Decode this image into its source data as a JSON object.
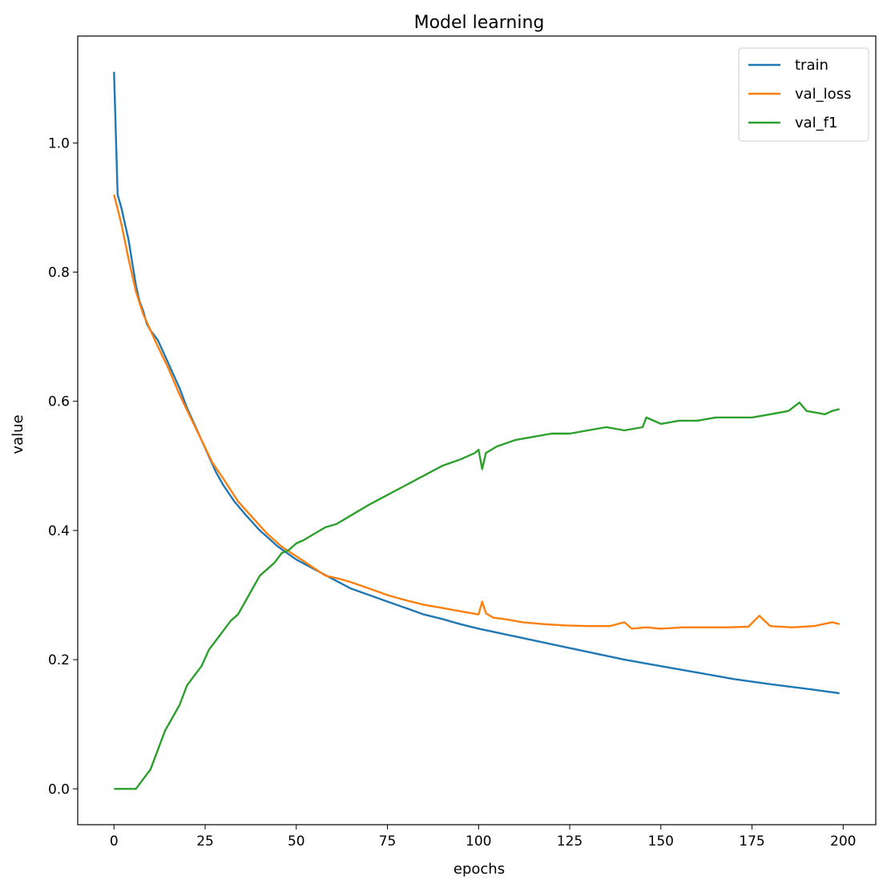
{
  "chart_data": {
    "type": "line",
    "title": "Model learning",
    "xlabel": "epochs",
    "ylabel": "value",
    "xlim": [
      -9.95,
      208.95
    ],
    "ylim": [
      -0.0555,
      1.1655
    ],
    "xticks": [
      0,
      25,
      50,
      75,
      100,
      125,
      150,
      175,
      200
    ],
    "yticks": [
      0.0,
      0.2,
      0.4,
      0.6,
      0.8,
      1.0
    ],
    "xtick_labels": [
      "0",
      "25",
      "50",
      "75",
      "100",
      "125",
      "150",
      "175",
      "200"
    ],
    "ytick_labels": [
      "0.0",
      "0.2",
      "0.4",
      "0.6",
      "0.8",
      "1.0"
    ],
    "grid": false,
    "legend_position": "top-right",
    "series": [
      {
        "name": "train",
        "color": "#1f77b4",
        "x": [
          0,
          1,
          2,
          3,
          4,
          5,
          6,
          7,
          8,
          9,
          10,
          12,
          14,
          16,
          18,
          20,
          22,
          24,
          26,
          28,
          30,
          33,
          36,
          40,
          45,
          50,
          55,
          60,
          65,
          70,
          75,
          80,
          85,
          90,
          95,
          100,
          110,
          120,
          130,
          140,
          150,
          160,
          170,
          180,
          190,
          199
        ],
        "values": [
          1.11,
          0.92,
          0.9,
          0.875,
          0.85,
          0.815,
          0.78,
          0.755,
          0.74,
          0.72,
          0.71,
          0.695,
          0.67,
          0.645,
          0.62,
          0.59,
          0.565,
          0.54,
          0.515,
          0.49,
          0.47,
          0.445,
          0.425,
          0.4,
          0.375,
          0.355,
          0.34,
          0.325,
          0.31,
          0.3,
          0.29,
          0.28,
          0.27,
          0.263,
          0.255,
          0.248,
          0.236,
          0.224,
          0.212,
          0.2,
          0.19,
          0.18,
          0.17,
          0.162,
          0.155,
          0.148
        ]
      },
      {
        "name": "val_loss",
        "color": "#ff7f0e",
        "x": [
          0,
          2,
          4,
          6,
          8,
          10,
          12,
          15,
          18,
          21,
          24,
          27,
          30,
          34,
          38,
          42,
          46,
          50,
          54,
          58,
          62,
          65,
          70,
          75,
          80,
          85,
          90,
          95,
          100,
          101,
          102,
          104,
          108,
          112,
          118,
          124,
          130,
          136,
          140,
          142,
          146,
          150,
          156,
          162,
          168,
          174,
          177,
          180,
          186,
          192,
          197,
          199
        ],
        "values": [
          0.92,
          0.875,
          0.82,
          0.77,
          0.735,
          0.71,
          0.685,
          0.65,
          0.61,
          0.575,
          0.54,
          0.505,
          0.48,
          0.445,
          0.42,
          0.395,
          0.375,
          0.36,
          0.345,
          0.33,
          0.325,
          0.32,
          0.31,
          0.3,
          0.292,
          0.285,
          0.28,
          0.275,
          0.27,
          0.29,
          0.272,
          0.265,
          0.262,
          0.258,
          0.255,
          0.253,
          0.252,
          0.252,
          0.258,
          0.248,
          0.25,
          0.248,
          0.25,
          0.25,
          0.25,
          0.251,
          0.268,
          0.252,
          0.25,
          0.252,
          0.258,
          0.255
        ]
      },
      {
        "name": "val_f1",
        "color": "#2ca02c",
        "x": [
          0,
          2,
          4,
          6,
          8,
          10,
          12,
          14,
          16,
          18,
          20,
          22,
          24,
          26,
          28,
          30,
          32,
          34,
          36,
          38,
          40,
          42,
          44,
          46,
          48,
          50,
          52,
          55,
          58,
          61,
          64,
          67,
          70,
          75,
          80,
          85,
          90,
          95,
          99,
          100,
          101,
          102,
          105,
          110,
          115,
          120,
          125,
          130,
          135,
          140,
          145,
          146,
          150,
          155,
          160,
          165,
          170,
          175,
          180,
          185,
          188,
          190,
          195,
          197,
          199
        ],
        "values": [
          0.0,
          0.0,
          0.0,
          0.0,
          0.015,
          0.03,
          0.06,
          0.09,
          0.11,
          0.13,
          0.16,
          0.175,
          0.19,
          0.215,
          0.23,
          0.245,
          0.26,
          0.27,
          0.29,
          0.31,
          0.33,
          0.34,
          0.35,
          0.365,
          0.37,
          0.38,
          0.385,
          0.395,
          0.405,
          0.41,
          0.42,
          0.43,
          0.44,
          0.455,
          0.47,
          0.485,
          0.5,
          0.51,
          0.52,
          0.525,
          0.495,
          0.52,
          0.53,
          0.54,
          0.545,
          0.55,
          0.55,
          0.555,
          0.56,
          0.555,
          0.56,
          0.575,
          0.565,
          0.57,
          0.57,
          0.575,
          0.575,
          0.575,
          0.58,
          0.585,
          0.598,
          0.585,
          0.58,
          0.585,
          0.588
        ]
      }
    ]
  }
}
